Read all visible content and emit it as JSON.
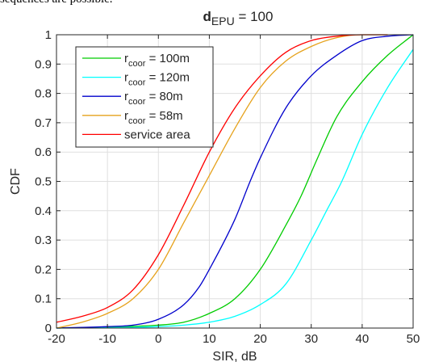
{
  "page": {
    "top_text": "sequences are possible."
  },
  "chart_data": {
    "type": "line",
    "title": {
      "main": "d",
      "subscript": "EPU",
      "rest": " = 100"
    },
    "xlabel": "SIR, dB",
    "ylabel": "CDF",
    "xlim": [
      -20,
      50
    ],
    "ylim": [
      0,
      1
    ],
    "xticks": [
      -20,
      -10,
      0,
      10,
      20,
      30,
      40,
      50
    ],
    "yticks": [
      0,
      0.1,
      0.2,
      0.3,
      0.4,
      0.5,
      0.6,
      0.7,
      0.8,
      0.9,
      1
    ],
    "grid": true,
    "legend_position": "top-left",
    "series": [
      {
        "name": {
          "base": "r",
          "sub": "coor",
          "rest": " = 100m"
        },
        "color": "#00cc00",
        "x": [
          -20,
          -10,
          -5,
          0,
          5,
          10,
          15,
          20,
          25,
          28,
          31,
          35,
          40,
          45,
          50
        ],
        "y": [
          0,
          0.003,
          0.006,
          0.01,
          0.02,
          0.05,
          0.1,
          0.2,
          0.35,
          0.45,
          0.57,
          0.72,
          0.84,
          0.93,
          1.0
        ]
      },
      {
        "name": {
          "base": "r",
          "sub": "coor",
          "rest": " = 120m"
        },
        "color": "#00ffff",
        "x": [
          -20,
          -10,
          0,
          5,
          10,
          15,
          20,
          25,
          30,
          33,
          36,
          40,
          45,
          50
        ],
        "y": [
          0,
          0.001,
          0.005,
          0.01,
          0.02,
          0.04,
          0.08,
          0.15,
          0.3,
          0.4,
          0.5,
          0.66,
          0.82,
          0.95
        ]
      },
      {
        "name": {
          "base": "r",
          "sub": "coor",
          "rest": " = 80m"
        },
        "color": "#0000cc",
        "x": [
          -20,
          -10,
          -5,
          0,
          5,
          8,
          10,
          15,
          18,
          20,
          25,
          30,
          35,
          40,
          45,
          50
        ],
        "y": [
          0,
          0.005,
          0.01,
          0.03,
          0.08,
          0.14,
          0.2,
          0.37,
          0.5,
          0.58,
          0.75,
          0.86,
          0.93,
          0.98,
          0.995,
          1.0
        ]
      },
      {
        "name": {
          "base": "r",
          "sub": "coor",
          "rest": " = 58m"
        },
        "color": "#e6a21c",
        "x": [
          -20,
          -15,
          -10,
          -5,
          0,
          5,
          10,
          15,
          20,
          25,
          30,
          35,
          40,
          45
        ],
        "y": [
          0,
          0.02,
          0.05,
          0.1,
          0.2,
          0.36,
          0.52,
          0.68,
          0.82,
          0.91,
          0.96,
          0.99,
          1.0,
          1.0
        ]
      },
      {
        "name": {
          "text": "service area"
        },
        "color": "#ff0000",
        "x": [
          -20,
          -15,
          -10,
          -5,
          0,
          5,
          10,
          15,
          20,
          25,
          30,
          35,
          40,
          45
        ],
        "y": [
          0.02,
          0.04,
          0.07,
          0.13,
          0.25,
          0.42,
          0.6,
          0.75,
          0.86,
          0.94,
          0.98,
          0.995,
          1.0,
          1.0
        ]
      }
    ]
  }
}
